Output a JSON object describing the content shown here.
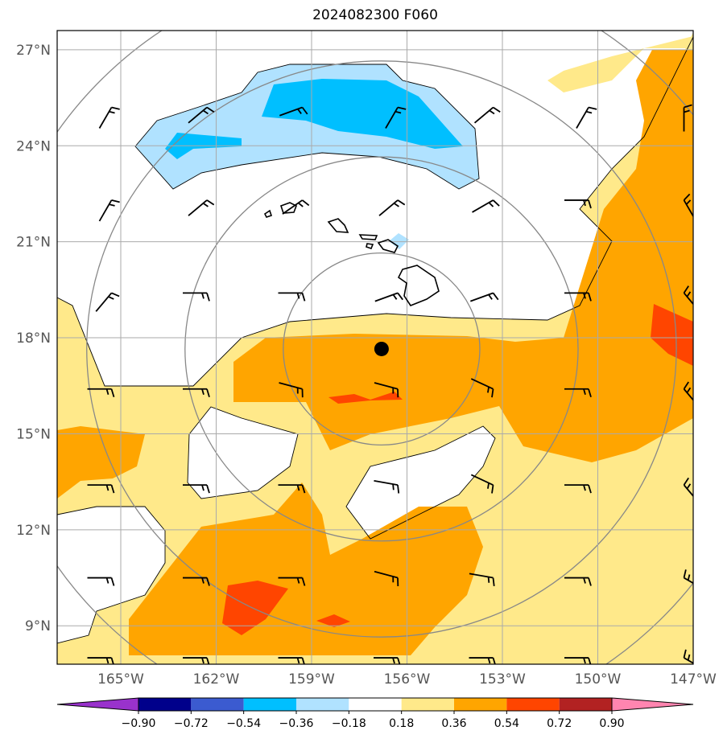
{
  "title": "2024082300 F060",
  "map": {
    "lon_range": [
      -167.0,
      -147.0
    ],
    "lat_range": [
      7.8,
      27.6
    ],
    "lat_ticks": [
      {
        "value": 27,
        "label": "27°N"
      },
      {
        "value": 24,
        "label": "24°N"
      },
      {
        "value": 21,
        "label": "21°N"
      },
      {
        "value": 18,
        "label": "18°N"
      },
      {
        "value": 15,
        "label": "15°N"
      },
      {
        "value": 12,
        "label": "12°N"
      },
      {
        "value": 9,
        "label": "9°N"
      }
    ],
    "lon_ticks": [
      {
        "value": -165,
        "label": "165°W"
      },
      {
        "value": -162,
        "label": "162°W"
      },
      {
        "value": -159,
        "label": "159°W"
      },
      {
        "value": -156,
        "label": "156°W"
      },
      {
        "value": -153,
        "label": "153°W"
      },
      {
        "value": -150,
        "label": "150°W"
      },
      {
        "value": -147,
        "label": "147°W"
      }
    ],
    "center_marker": {
      "lon": -156.8,
      "lat": 17.65
    },
    "range_ring_radii_deg": [
      3,
      6,
      9,
      12
    ],
    "gridlines": true
  },
  "colorbar": {
    "levels": [
      "-0.90",
      "-0.72",
      "-0.54",
      "-0.36",
      "-0.18",
      "0.18",
      "0.36",
      "0.54",
      "0.72",
      "0.90"
    ],
    "colors": [
      "#9932cc",
      "#00008b",
      "#3b5bd0",
      "#00bfff",
      "#b0e2ff",
      "#ffffff",
      "#ffe98a",
      "#ffa500",
      "#ff4500",
      "#b22222",
      "#ff85b0"
    ],
    "extend": "both"
  },
  "wind_barbs": {
    "note_free": true
  }
}
